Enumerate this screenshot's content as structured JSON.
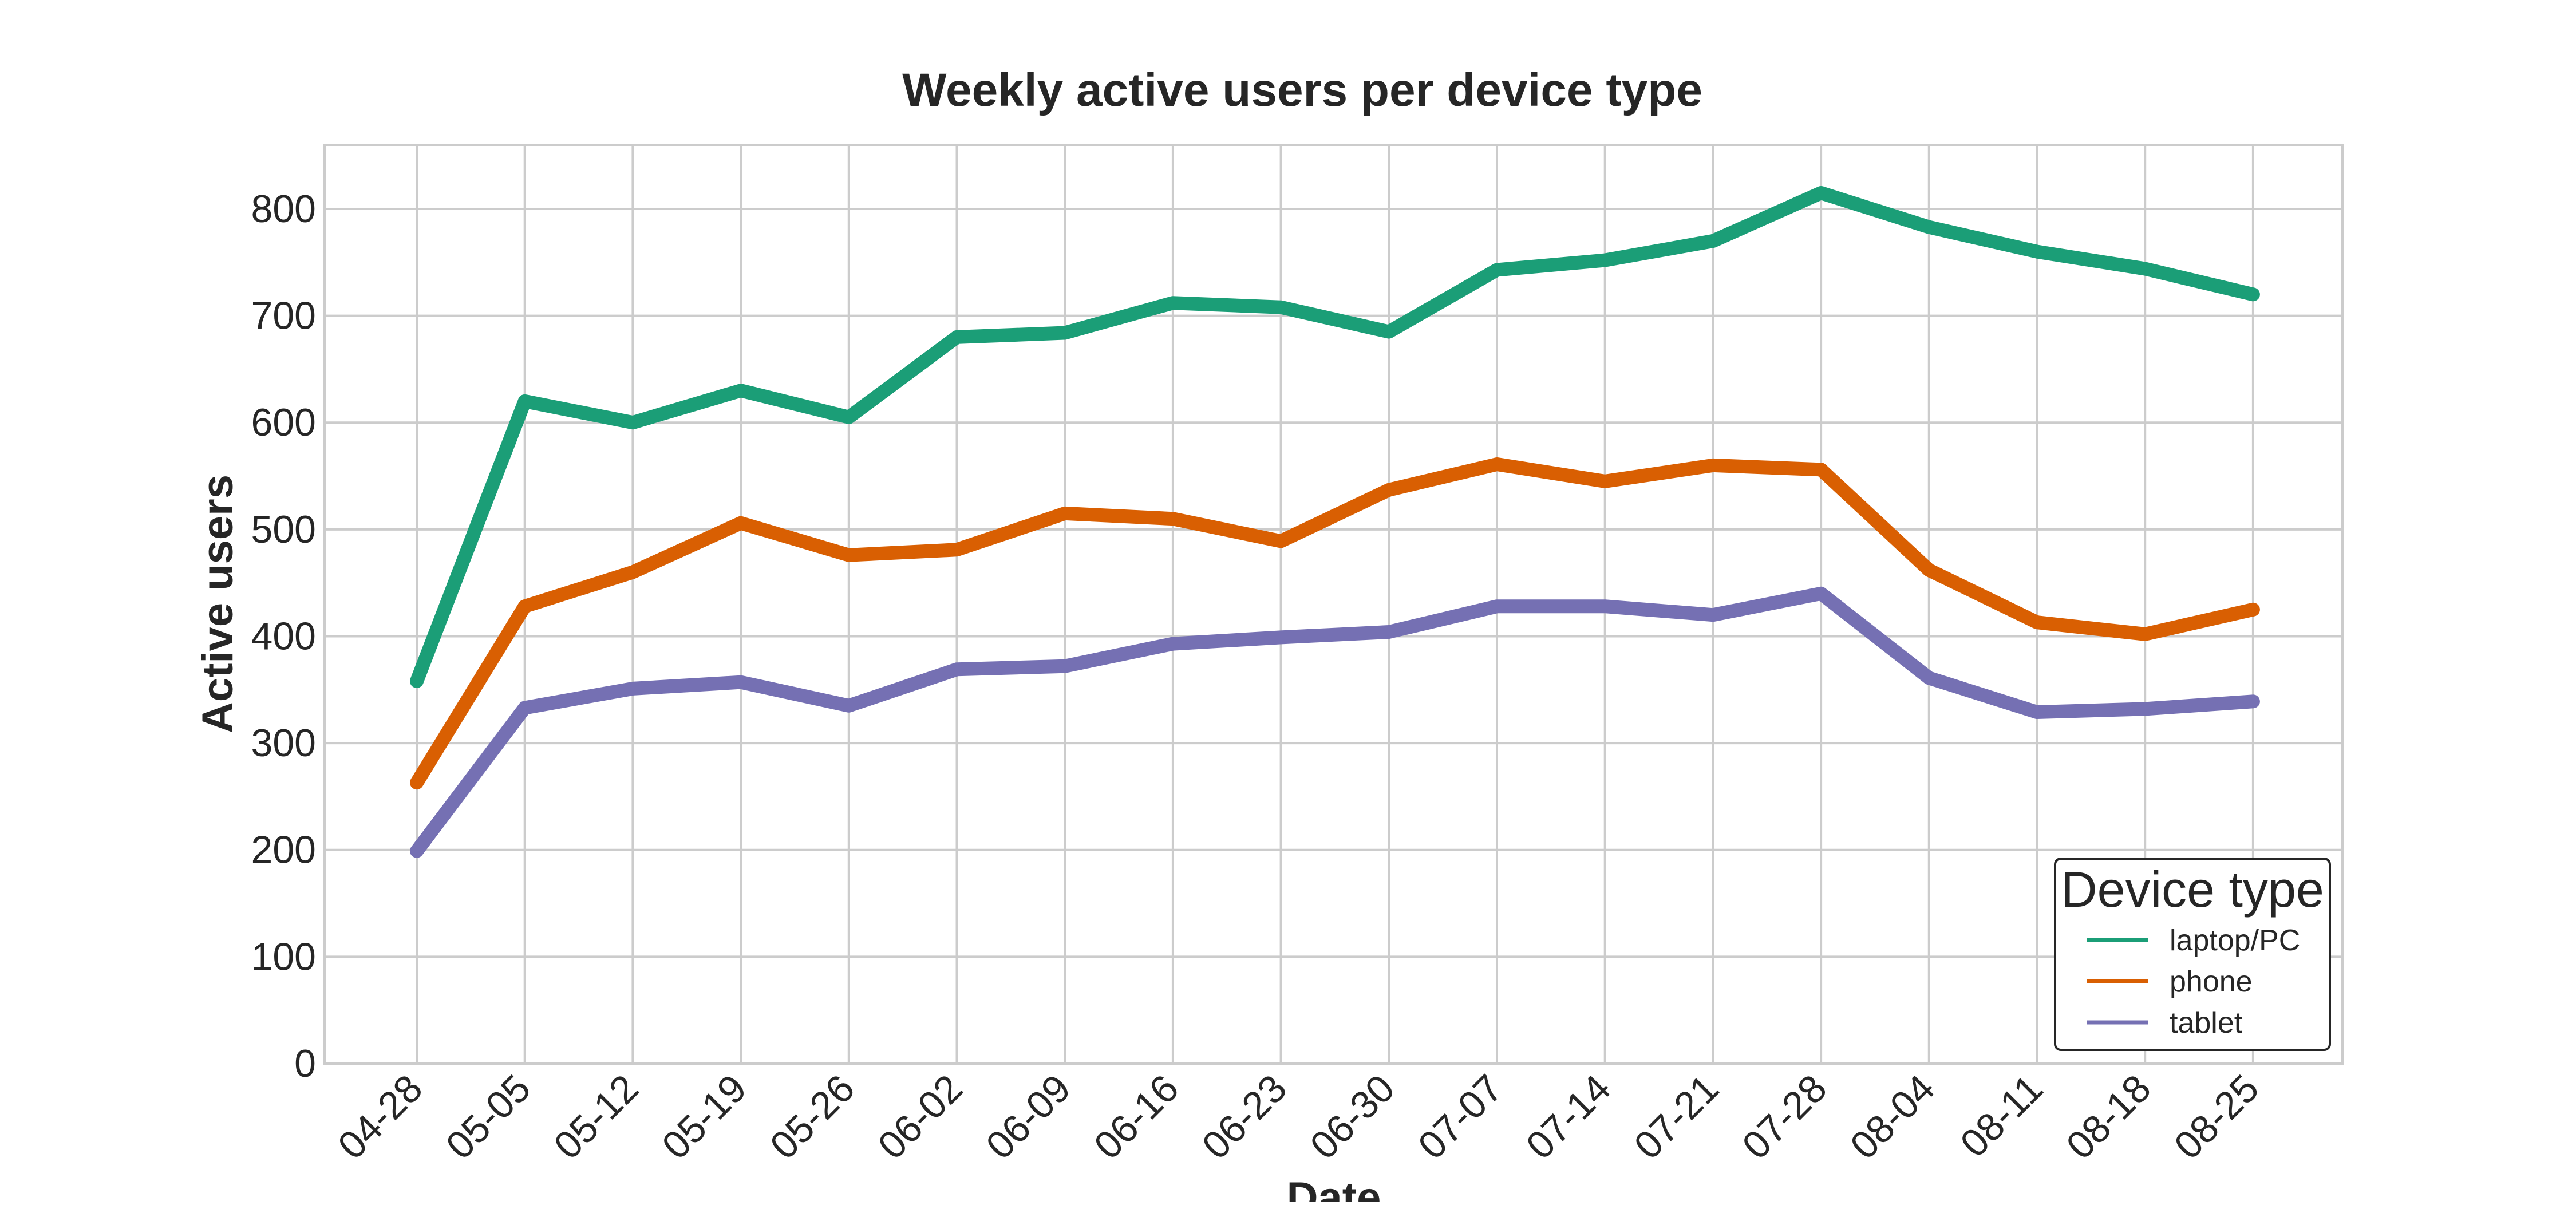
{
  "chart_data": {
    "type": "line",
    "title": "Weekly active users per device type",
    "xlabel": "Date",
    "ylabel": "Active users",
    "categories": [
      "04-28",
      "05-05",
      "05-12",
      "05-19",
      "05-26",
      "06-02",
      "06-09",
      "06-16",
      "06-23",
      "06-30",
      "07-07",
      "07-14",
      "07-21",
      "07-28",
      "08-04",
      "08-11",
      "08-18",
      "08-25"
    ],
    "yticks": [
      "0",
      "100",
      "200",
      "300",
      "400",
      "500",
      "600",
      "700",
      "800"
    ],
    "ylim": [
      0,
      860
    ],
    "grid": true,
    "legend": {
      "title": "Device type",
      "placement": "lower-right"
    },
    "series": [
      {
        "name": "laptop/PC",
        "color": "#1b9e77",
        "values": [
          358,
          620,
          600,
          630,
          605,
          680,
          684,
          712,
          708,
          685,
          743,
          752,
          770,
          815,
          783,
          760,
          744,
          720
        ]
      },
      {
        "name": "phone",
        "color": "#d95f02",
        "values": [
          263,
          428,
          460,
          506,
          476,
          481,
          515,
          510,
          489,
          537,
          561,
          545,
          560,
          556,
          462,
          413,
          402,
          425
        ]
      },
      {
        "name": "tablet",
        "color": "#7570b3",
        "values": [
          199,
          333,
          351,
          357,
          335,
          369,
          372,
          393,
          399,
          404,
          428,
          428,
          420,
          440,
          361,
          329,
          332,
          339
        ]
      }
    ]
  }
}
